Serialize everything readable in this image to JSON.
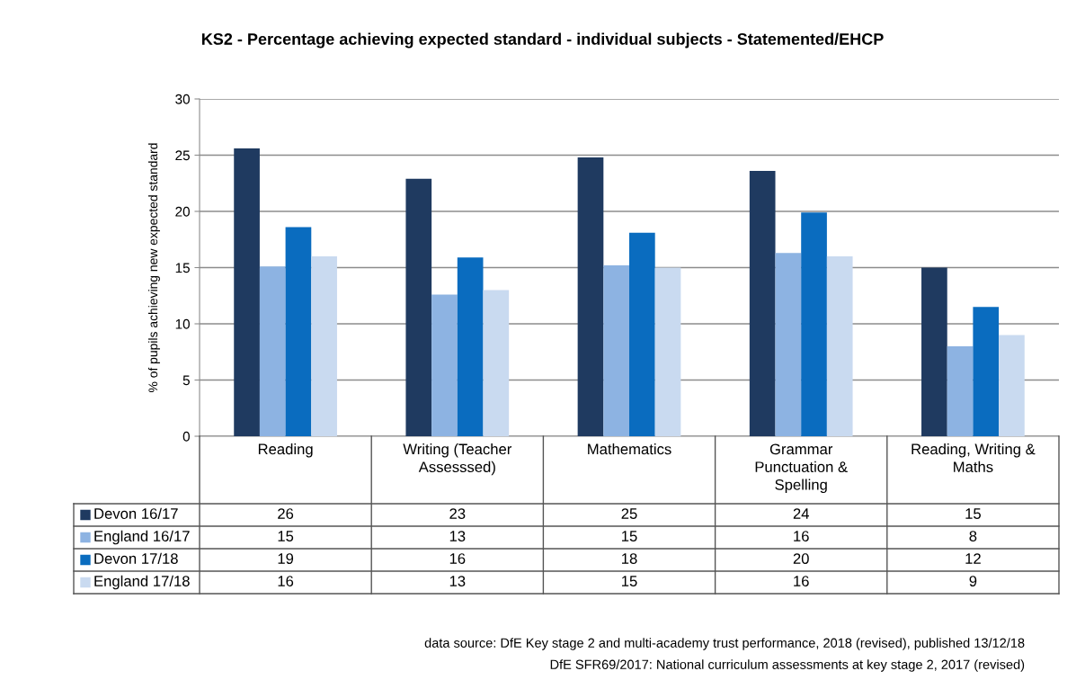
{
  "chart_data": {
    "type": "bar",
    "title": "KS2 - Percentage achieving expected standard - individual subjects - Statemented/EHCP",
    "ylabel": "% of pupils achieving new expected standard",
    "categories": [
      "Reading",
      "Writing (Teacher Assesssed)",
      "Mathematics",
      "Grammar Punctuation & Spelling",
      "Reading, Writing & Maths"
    ],
    "series": [
      {
        "name": "Devon 16/17",
        "color": "#1f3a60",
        "values": [
          25.6,
          22.9,
          24.8,
          23.6,
          15.0
        ],
        "value_labels": [
          "26",
          "23",
          "25",
          "24",
          "15"
        ]
      },
      {
        "name": "England 16/17",
        "color": "#8db3e2",
        "values": [
          15.1,
          12.6,
          15.2,
          16.3,
          8.0
        ],
        "value_labels": [
          "15",
          "13",
          "15",
          "16",
          "8"
        ]
      },
      {
        "name": "Devon 17/18",
        "color": "#0a6cbf",
        "values": [
          18.6,
          15.9,
          18.1,
          19.9,
          11.5
        ],
        "value_labels": [
          "19",
          "16",
          "18",
          "20",
          "12"
        ]
      },
      {
        "name": "England 17/18",
        "color": "#c9daf0",
        "values": [
          16.0,
          13.0,
          15.0,
          16.0,
          9.0
        ],
        "value_labels": [
          "16",
          "13",
          "15",
          "16",
          "9"
        ]
      }
    ],
    "ylim": [
      0,
      30
    ],
    "yticks": [
      0,
      5,
      10,
      15,
      20,
      25,
      30
    ],
    "grid": "y",
    "legend": "bottom",
    "annotations": [
      "data source: DfE Key stage 2 and multi-academy trust performance, 2018 (revised), published 13/12/18",
      "DfE SFR69/2017: National curriculum assessments at key stage 2, 2017 (revised)"
    ]
  }
}
